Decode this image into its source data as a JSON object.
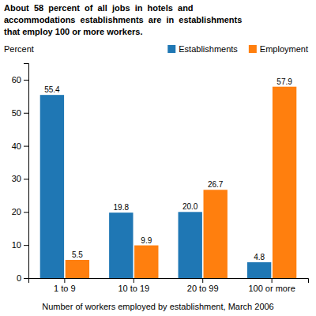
{
  "chart_data": {
    "type": "bar",
    "title": [
      "About  58  percent  of  all  jobs  in  hotels  and",
      "accommodations  establishments  are  in  establishments",
      "that employ 100 or more workers."
    ],
    "ylabel": "Percent",
    "xlabel": "Number of workers employed by establishment, March 2006",
    "categories": [
      "1 to 9",
      "10 to 19",
      "20 to 99",
      "100 or more"
    ],
    "series": [
      {
        "name": "Establishments",
        "values": [
          55.4,
          19.8,
          20.0,
          4.8
        ],
        "value_labels": [
          "55.4",
          "19.8",
          "20.0",
          "4.8"
        ]
      },
      {
        "name": "Employment",
        "values": [
          5.5,
          9.9,
          26.7,
          57.9
        ]
      }
    ],
    "ylim": [
      0,
      65
    ],
    "yticks": [
      0,
      10,
      20,
      30,
      40,
      50,
      60
    ],
    "data_labels": true,
    "legend": "upper right",
    "grid": false
  }
}
